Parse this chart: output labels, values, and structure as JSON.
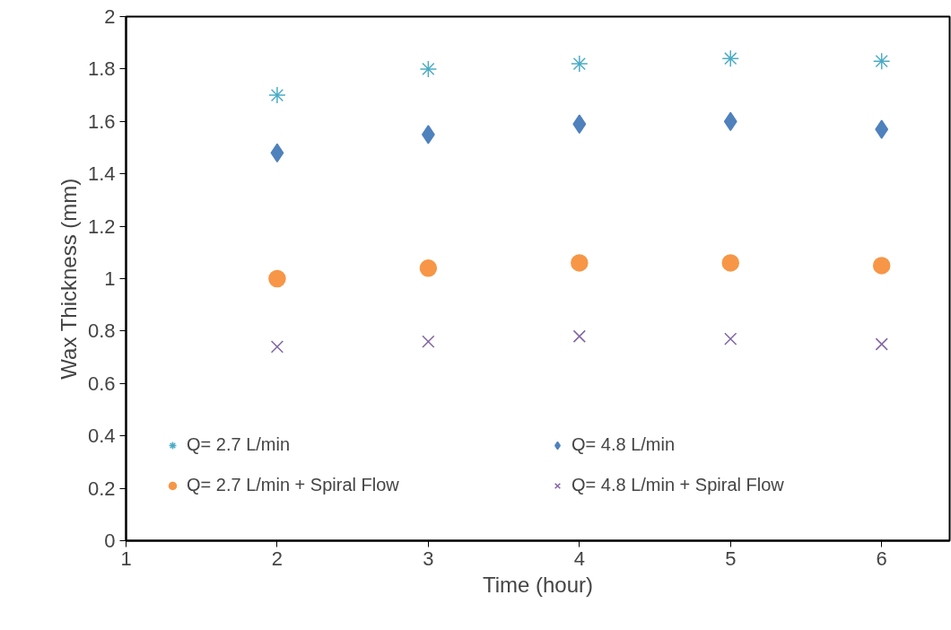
{
  "chart_data": {
    "type": "scatter",
    "xlabel": "Time (hour)",
    "ylabel": "Wax Thickness (mm)",
    "x": [
      2,
      3,
      4,
      5,
      6
    ],
    "series": [
      {
        "name": "Q= 2.7 L/min",
        "color": "#4bacc6",
        "values": [
          1.7,
          1.8,
          1.82,
          1.84,
          1.83
        ]
      },
      {
        "name": "Q= 4.8 L/min",
        "color": "#4f81bd",
        "marker": "diamond",
        "values": [
          1.48,
          1.55,
          1.59,
          1.6,
          1.57
        ]
      },
      {
        "name": "Q= 2.7 L/min + Spiral Flow",
        "color": "#f79646",
        "marker": "circle",
        "values": [
          1.0,
          1.04,
          1.06,
          1.06,
          1.05
        ]
      },
      {
        "name": "Q= 4.8 L/min + Spiral Flow",
        "color": "#8064a2",
        "marker": "cross",
        "values": [
          0.74,
          0.76,
          0.78,
          0.77,
          0.75
        ]
      }
    ],
    "xlim": [
      1,
      6.45
    ],
    "xticks": [
      1,
      2,
      3,
      4,
      5,
      6
    ],
    "ylim": [
      0,
      2
    ],
    "yticks": [
      0,
      0.2,
      0.4,
      0.6,
      0.8,
      1,
      1.2,
      1.4,
      1.6,
      1.8,
      2
    ],
    "grid": false,
    "legend": "bottom"
  }
}
